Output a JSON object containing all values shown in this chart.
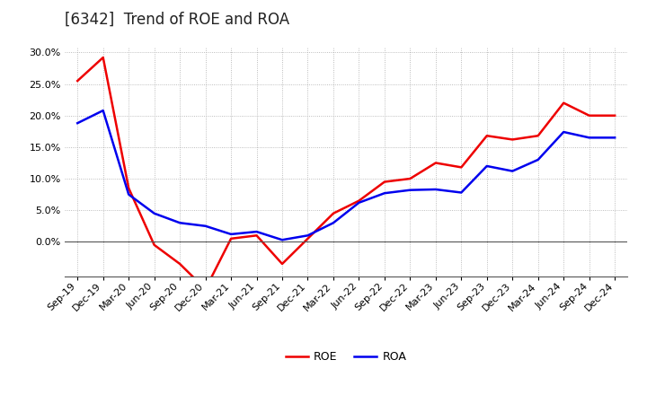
{
  "title": "[6342]  Trend of ROE and ROA",
  "labels": [
    "Sep-19",
    "Dec-19",
    "Mar-20",
    "Jun-20",
    "Sep-20",
    "Dec-20",
    "Mar-21",
    "Jun-21",
    "Sep-21",
    "Dec-21",
    "Mar-22",
    "Jun-22",
    "Sep-22",
    "Dec-22",
    "Mar-23",
    "Jun-23",
    "Sep-23",
    "Dec-23",
    "Mar-24",
    "Jun-24",
    "Sep-24",
    "Dec-24"
  ],
  "ROE": [
    0.255,
    0.292,
    0.085,
    -0.005,
    -0.035,
    -0.075,
    0.005,
    0.01,
    -0.035,
    0.005,
    0.045,
    0.065,
    0.095,
    0.1,
    0.125,
    0.118,
    0.168,
    0.162,
    0.168,
    0.22,
    0.2,
    0.2
  ],
  "ROA": [
    0.188,
    0.208,
    0.075,
    0.045,
    0.03,
    0.025,
    0.012,
    0.016,
    0.003,
    0.01,
    0.03,
    0.062,
    0.077,
    0.082,
    0.083,
    0.078,
    0.12,
    0.112,
    0.13,
    0.174,
    0.165,
    0.165
  ],
  "ROE_color": "#ee0000",
  "ROA_color": "#0000ee",
  "ylim_min": -0.055,
  "ylim_max": 0.308,
  "background_color": "#ffffff",
  "grid_color": "#aaaaaa",
  "title_fontsize": 12,
  "axis_fontsize": 8,
  "legend_fontsize": 9,
  "line_width": 1.8,
  "yticks": [
    0.0,
    0.05,
    0.1,
    0.15,
    0.2,
    0.25,
    0.3
  ]
}
